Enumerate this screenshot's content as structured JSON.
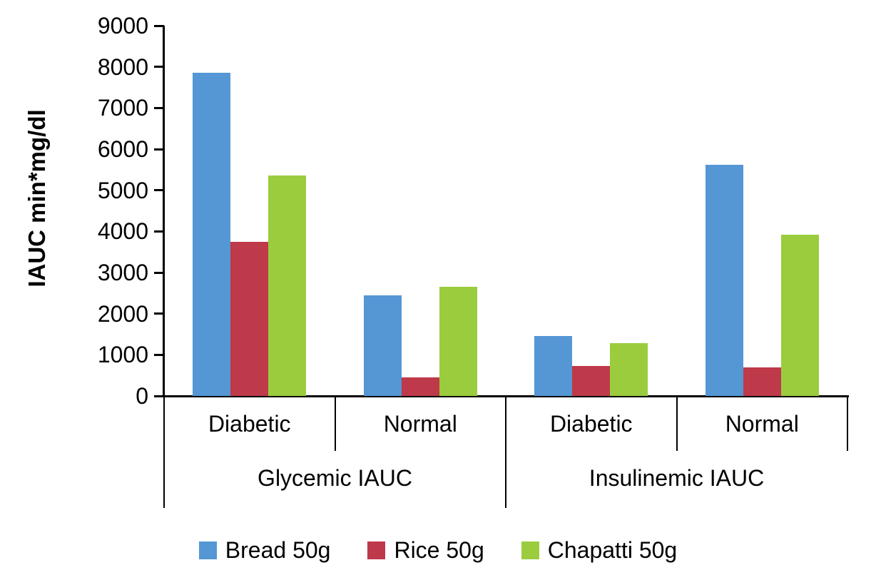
{
  "chart_data": {
    "type": "bar",
    "title": "",
    "ylabel": "IAUC min*mg/dl",
    "xlabel": "",
    "ylim": [
      0,
      9000
    ],
    "ytick_step": 1000,
    "grid": false,
    "legend_position": "bottom",
    "group_labels": [
      "Glycemic IAUC",
      "Insulinemic IAUC"
    ],
    "categories": [
      "Diabetic",
      "Normal",
      "Diabetic",
      "Normal"
    ],
    "series": [
      {
        "name": "Bread 50g",
        "color": "#5596D4",
        "values": [
          7850,
          2450,
          1450,
          5620
        ]
      },
      {
        "name": "Rice 50g",
        "color": "#BE394A",
        "values": [
          3750,
          450,
          730,
          690
        ]
      },
      {
        "name": "Chapatti 50g",
        "color": "#9BCC3D",
        "values": [
          5350,
          2650,
          1280,
          3920
        ]
      }
    ]
  }
}
